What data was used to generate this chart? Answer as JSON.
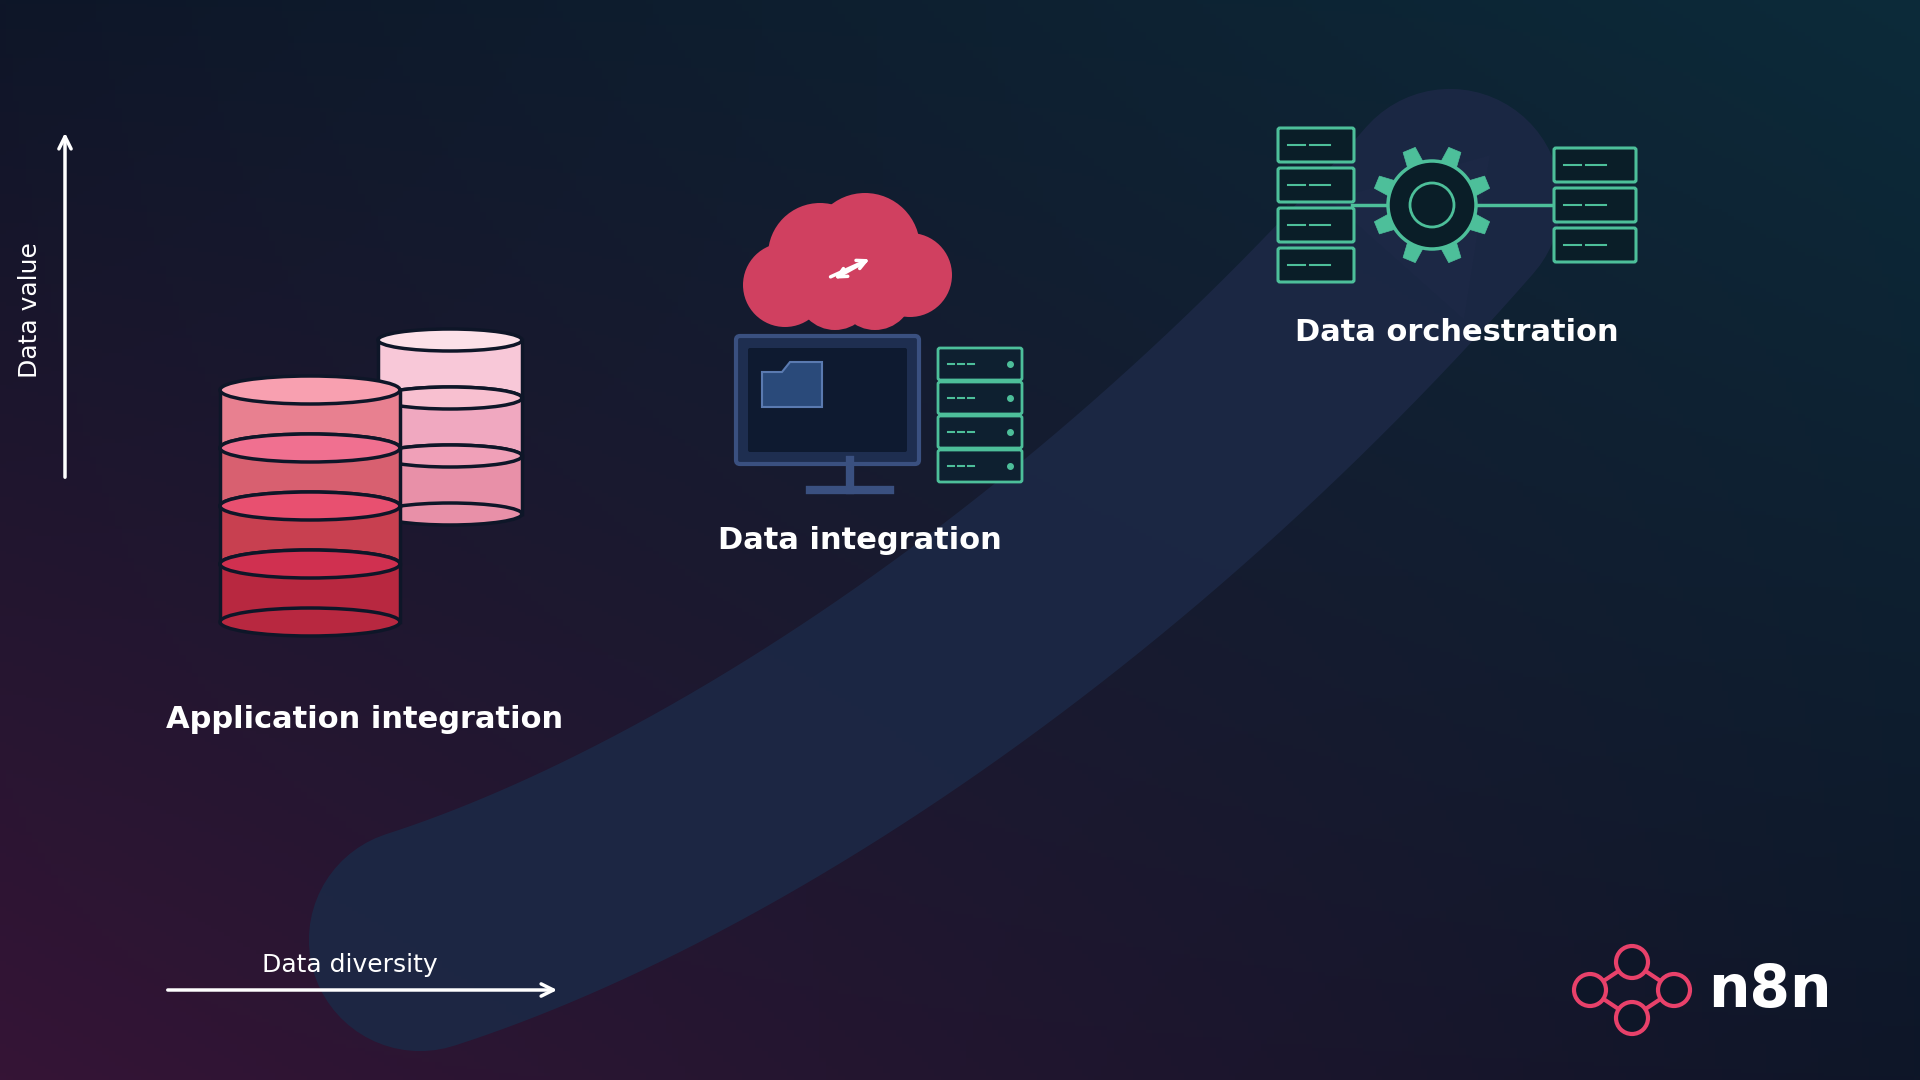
{
  "bg_dark": "#0e1628",
  "label1": "Application integration",
  "label2": "Data integration",
  "label3": "Data orchestration",
  "axis_x": "Data diversity",
  "axis_y": "Data value",
  "text_color": "#ffffff",
  "axis_color": "#ffffff",
  "pink_dark": "#d43060",
  "pink_mid": "#e86080",
  "pink_light": "#f8b0c0",
  "pink_pale": "#fce0e8",
  "teal": "#4dbf9a",
  "navy_arrow": "#1a2540",
  "label_fontsize": 22,
  "axis_fontsize": 18,
  "disc_outline": "#0e1628",
  "n8n_pink": "#e8416a",
  "n8n_text": "#ffffff"
}
